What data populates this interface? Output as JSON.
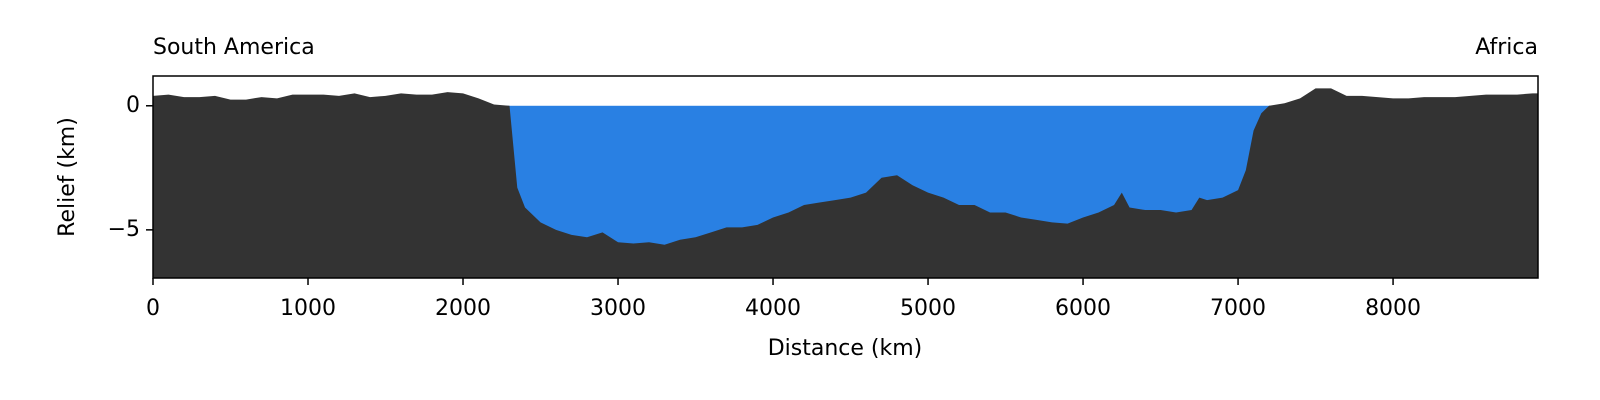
{
  "chart_data": {
    "type": "area",
    "annotations": {
      "left": "South America",
      "right": "Africa"
    },
    "xlabel": "Distance (km)",
    "ylabel": "Relief (km)",
    "x": [
      0,
      100,
      200,
      300,
      400,
      500,
      600,
      700,
      800,
      900,
      1000,
      1100,
      1200,
      1300,
      1400,
      1500,
      1600,
      1700,
      1800,
      1900,
      2000,
      2100,
      2200,
      2300,
      2350,
      2400,
      2500,
      2600,
      2700,
      2800,
      2900,
      3000,
      3100,
      3200,
      3300,
      3400,
      3500,
      3600,
      3700,
      3800,
      3900,
      4000,
      4100,
      4200,
      4300,
      4400,
      4500,
      4600,
      4700,
      4800,
      4900,
      5000,
      5100,
      5200,
      5300,
      5400,
      5500,
      5600,
      5700,
      5800,
      5900,
      6000,
      6100,
      6200,
      6250,
      6300,
      6400,
      6500,
      6600,
      6700,
      6750,
      6800,
      6900,
      7000,
      7050,
      7100,
      7150,
      7200,
      7300,
      7400,
      7500,
      7600,
      7700,
      7800,
      7900,
      8000,
      8100,
      8200,
      8300,
      8400,
      8500,
      8600,
      8700,
      8800,
      8900
    ],
    "values": [
      0.4,
      0.45,
      0.35,
      0.35,
      0.4,
      0.25,
      0.25,
      0.35,
      0.3,
      0.45,
      0.45,
      0.45,
      0.4,
      0.5,
      0.35,
      0.4,
      0.5,
      0.45,
      0.45,
      0.55,
      0.5,
      0.3,
      0.05,
      0.0,
      -3.3,
      -4.1,
      -4.7,
      -5.0,
      -5.2,
      -5.3,
      -5.1,
      -5.5,
      -5.55,
      -5.5,
      -5.6,
      -5.4,
      -5.3,
      -5.1,
      -4.9,
      -4.9,
      -4.8,
      -4.5,
      -4.3,
      -4.0,
      -3.9,
      -3.8,
      -3.7,
      -3.5,
      -2.9,
      -2.8,
      -3.2,
      -3.5,
      -3.7,
      -4.0,
      -4.0,
      -4.3,
      -4.3,
      -4.5,
      -4.6,
      -4.7,
      -4.75,
      -4.5,
      -4.3,
      -4.0,
      -3.5,
      -4.1,
      -4.2,
      -4.2,
      -4.3,
      -4.2,
      -3.7,
      -3.8,
      -3.7,
      -3.4,
      -2.6,
      -1.0,
      -0.3,
      0.0,
      0.1,
      0.3,
      0.7,
      0.7,
      0.4,
      0.4,
      0.35,
      0.3,
      0.3,
      0.35,
      0.35,
      0.35,
      0.4,
      0.45,
      0.45,
      0.45,
      0.5
    ],
    "color": "#333333",
    "water_color": "#2980e3",
    "xlim": [
      0,
      8935
    ],
    "ylim": [
      -6.94,
      1.2
    ],
    "xticks": [
      0,
      1000,
      2000,
      3000,
      4000,
      5000,
      6000,
      7000,
      8000
    ],
    "yticks": [
      {
        "value": -5,
        "label": "−5"
      },
      0
    ]
  }
}
